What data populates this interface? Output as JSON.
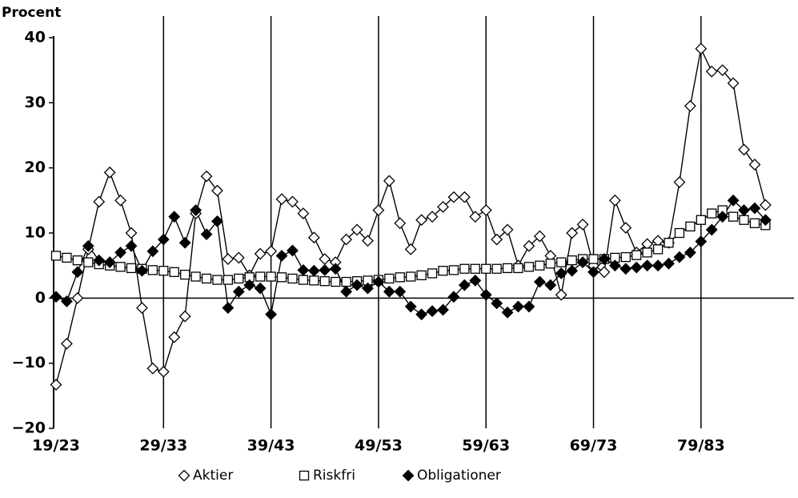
{
  "chart_data": {
    "type": "line",
    "y_label": "Procent",
    "categories": [
      "19/23",
      null,
      null,
      null,
      null,
      null,
      null,
      null,
      null,
      null,
      "29/33",
      null,
      null,
      null,
      null,
      null,
      null,
      null,
      null,
      null,
      "39/43",
      null,
      null,
      null,
      null,
      null,
      null,
      null,
      null,
      null,
      "49/53",
      null,
      null,
      null,
      null,
      null,
      null,
      null,
      null,
      null,
      "59/63",
      null,
      null,
      null,
      null,
      null,
      null,
      null,
      null,
      null,
      "69/73",
      null,
      null,
      null,
      null,
      null,
      null,
      null,
      null,
      null,
      "79/83",
      null,
      null,
      null,
      null,
      null,
      null
    ],
    "series": [
      {
        "name": "Aktier",
        "color": "#000000",
        "marker": "diamond-open",
        "values": [
          -13.3,
          -7,
          0,
          7.5,
          14.8,
          19.3,
          15,
          10,
          -1.5,
          -10.8,
          -11.3,
          -6,
          -2.8,
          13,
          18.7,
          16.5,
          6,
          6.2,
          3.5,
          6.8,
          7.2,
          15.2,
          14.8,
          13,
          9.3,
          6,
          5.5,
          9,
          10.5,
          8.8,
          13.5,
          18,
          11.5,
          7.5,
          12,
          12.5,
          14,
          15.5,
          15.5,
          12.5,
          13.5,
          9,
          10.5,
          5,
          8,
          9.5,
          6.5,
          0.5,
          10,
          11.3,
          5,
          4,
          15,
          10.8,
          7,
          8.3,
          8.8,
          8.5,
          17.8,
          29.5,
          38.3,
          34.8,
          35,
          33,
          22.8,
          20.5,
          14.3
        ]
      },
      {
        "name": "Riskfri",
        "color": "#000000",
        "marker": "square-open",
        "values": [
          6.5,
          6.2,
          5.8,
          5.5,
          5.2,
          5,
          4.8,
          4.6,
          4.5,
          4.3,
          4.2,
          4,
          3.6,
          3.3,
          3,
          2.8,
          2.8,
          3,
          3.2,
          3.3,
          3.3,
          3.2,
          3,
          2.8,
          2.7,
          2.6,
          2.5,
          2.5,
          2.6,
          2.7,
          2.8,
          3,
          3.2,
          3.3,
          3.5,
          3.8,
          4.2,
          4.3,
          4.5,
          4.5,
          4.5,
          4.5,
          4.6,
          4.6,
          4.8,
          5,
          5.3,
          5.5,
          5.8,
          6,
          6,
          6,
          6.2,
          6.3,
          6.6,
          7,
          7.5,
          8.5,
          10,
          11,
          12,
          13,
          13.5,
          12.5,
          12,
          11.5,
          11.2
        ]
      },
      {
        "name": "Obligationer",
        "color": "#000000",
        "marker": "diamond-filled",
        "values": [
          0.2,
          -0.5,
          4,
          8,
          5.8,
          5.5,
          7,
          8,
          4.2,
          7.2,
          9,
          12.5,
          8.5,
          13.5,
          9.8,
          11.8,
          -1.5,
          1,
          2,
          1.5,
          -2.5,
          6.5,
          7.3,
          4.3,
          4.2,
          4.3,
          4.5,
          1,
          2,
          1.5,
          2.5,
          1,
          1,
          -1.3,
          -2.5,
          -2,
          -1.8,
          0.2,
          2,
          2.7,
          0.5,
          -0.8,
          -2.2,
          -1.3,
          -1.3,
          2.5,
          2,
          3.8,
          4.2,
          5.5,
          4,
          6,
          5,
          4.5,
          4.7,
          5,
          5,
          5.3,
          6.3,
          7,
          8.7,
          10.5,
          12.5,
          15,
          13.5,
          13.8,
          12
        ]
      }
    ],
    "ylim": [
      -20,
      40
    ],
    "yticks": [
      {
        "value": -20,
        "label": "−20"
      },
      {
        "value": -10,
        "label": "−10"
      },
      0,
      10,
      20,
      30,
      40
    ],
    "grid": "x-category-lines",
    "legend": "bottom"
  }
}
